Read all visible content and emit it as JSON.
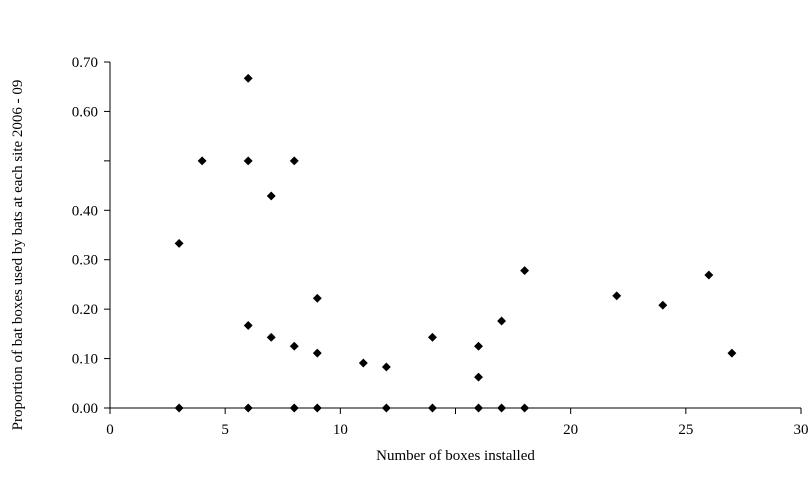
{
  "chart_data": {
    "type": "scatter",
    "title": "",
    "xlabel": "Number of boxes installed",
    "ylabel": "Proportion of bat boxes used by bats at each site 2006 - 09",
    "xlim": [
      0,
      30
    ],
    "ylim": [
      0,
      0.7
    ],
    "x_ticks": [
      {
        "value": 0,
        "label": "0"
      },
      {
        "value": 5,
        "label": "5"
      },
      {
        "value": 10,
        "label": "10"
      },
      {
        "value": 20,
        "label": "20"
      },
      {
        "value": 25,
        "label": "25"
      },
      {
        "value": 30,
        "label": "30"
      }
    ],
    "x_minor_ticks": [
      15
    ],
    "y_ticks": [
      {
        "value": 0,
        "label": "0.00"
      },
      {
        "value": 0.1,
        "label": "0.10"
      },
      {
        "value": 0.2,
        "label": "0.20"
      },
      {
        "value": 0.3,
        "label": "0.30"
      },
      {
        "value": 0.4,
        "label": "0.40"
      },
      {
        "value": 0.6,
        "label": "0.60"
      },
      {
        "value": 0.7,
        "label": "0.70"
      }
    ],
    "y_minor_ticks": [
      0.5
    ],
    "grid": false,
    "legend": "none",
    "marker": "diamond",
    "marker_color": "#000000",
    "series": [
      {
        "points": [
          {
            "x": 3,
            "y": 0.333
          },
          {
            "x": 3,
            "y": 0.0
          },
          {
            "x": 4,
            "y": 0.5
          },
          {
            "x": 6,
            "y": 0.667
          },
          {
            "x": 6,
            "y": 0.5
          },
          {
            "x": 6,
            "y": 0.167
          },
          {
            "x": 6,
            "y": 0.0
          },
          {
            "x": 7,
            "y": 0.429
          },
          {
            "x": 7,
            "y": 0.143
          },
          {
            "x": 8,
            "y": 0.5
          },
          {
            "x": 8,
            "y": 0.125
          },
          {
            "x": 8,
            "y": 0.0
          },
          {
            "x": 9,
            "y": 0.222
          },
          {
            "x": 9,
            "y": 0.111
          },
          {
            "x": 9,
            "y": 0.0
          },
          {
            "x": 11,
            "y": 0.091
          },
          {
            "x": 12,
            "y": 0.083
          },
          {
            "x": 12,
            "y": 0.0
          },
          {
            "x": 14,
            "y": 0.143
          },
          {
            "x": 14,
            "y": 0.0
          },
          {
            "x": 16,
            "y": 0.125
          },
          {
            "x": 16,
            "y": 0.0625
          },
          {
            "x": 16,
            "y": 0.0
          },
          {
            "x": 17,
            "y": 0.176
          },
          {
            "x": 17,
            "y": 0.0
          },
          {
            "x": 18,
            "y": 0.278
          },
          {
            "x": 18,
            "y": 0.0
          },
          {
            "x": 22,
            "y": 0.227
          },
          {
            "x": 24,
            "y": 0.208
          },
          {
            "x": 26,
            "y": 0.269
          },
          {
            "x": 27,
            "y": 0.111
          }
        ]
      }
    ]
  }
}
